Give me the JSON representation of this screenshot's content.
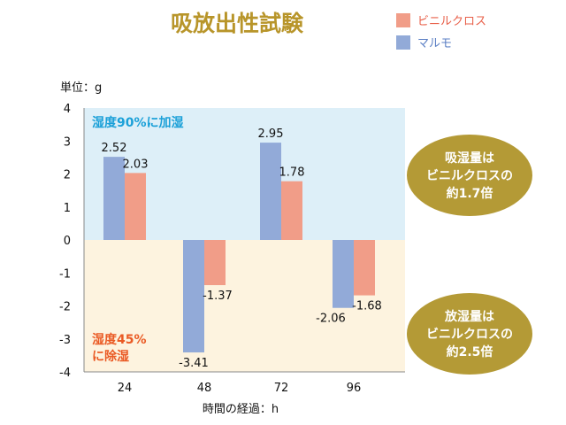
{
  "chart_data": {
    "type": "bar",
    "title": "吸放出性試験",
    "categories": [
      "24",
      "48",
      "72",
      "96"
    ],
    "series": [
      {
        "name": "マルモ",
        "values": [
          2.52,
          -3.41,
          2.95,
          -2.06
        ],
        "color": "#92aad8"
      },
      {
        "name": "ビニルクロス",
        "values": [
          2.03,
          -1.37,
          1.78,
          -1.68
        ],
        "color": "#f19d88"
      }
    ],
    "data_labels": {
      "マルモ": [
        "2.52",
        "-3.41",
        "2.95",
        "-2.06"
      ],
      "ビニルクロス": [
        "2.03",
        "-1.37",
        "1.78",
        "-1.68"
      ]
    },
    "ylim": [
      -4,
      4
    ],
    "yticks": [
      "4",
      "3",
      "2",
      "1",
      "0",
      "-1",
      "-2",
      "-3",
      "-4"
    ],
    "ylabel": "単位：g",
    "xlabel": "時間の経過：h",
    "legend_position": "top-right",
    "grid": false
  },
  "zones": {
    "upper": {
      "label": "湿度90%に加湿",
      "color": "#ddeff8",
      "text_color": "#1aa0d8"
    },
    "lower": {
      "label_line1": "湿度45%",
      "label_line2": "に除湿",
      "color": "#fdf3df",
      "text_color": "#ea5a24"
    }
  },
  "badges": [
    {
      "line1": "吸湿量は",
      "line2": "ビニルクロスの",
      "line3": "約1.7倍",
      "color": "#b49a36"
    },
    {
      "line1": "放湿量は",
      "line2": "ビニルクロスの",
      "line3": "約2.5倍",
      "color": "#b49a36"
    }
  ]
}
